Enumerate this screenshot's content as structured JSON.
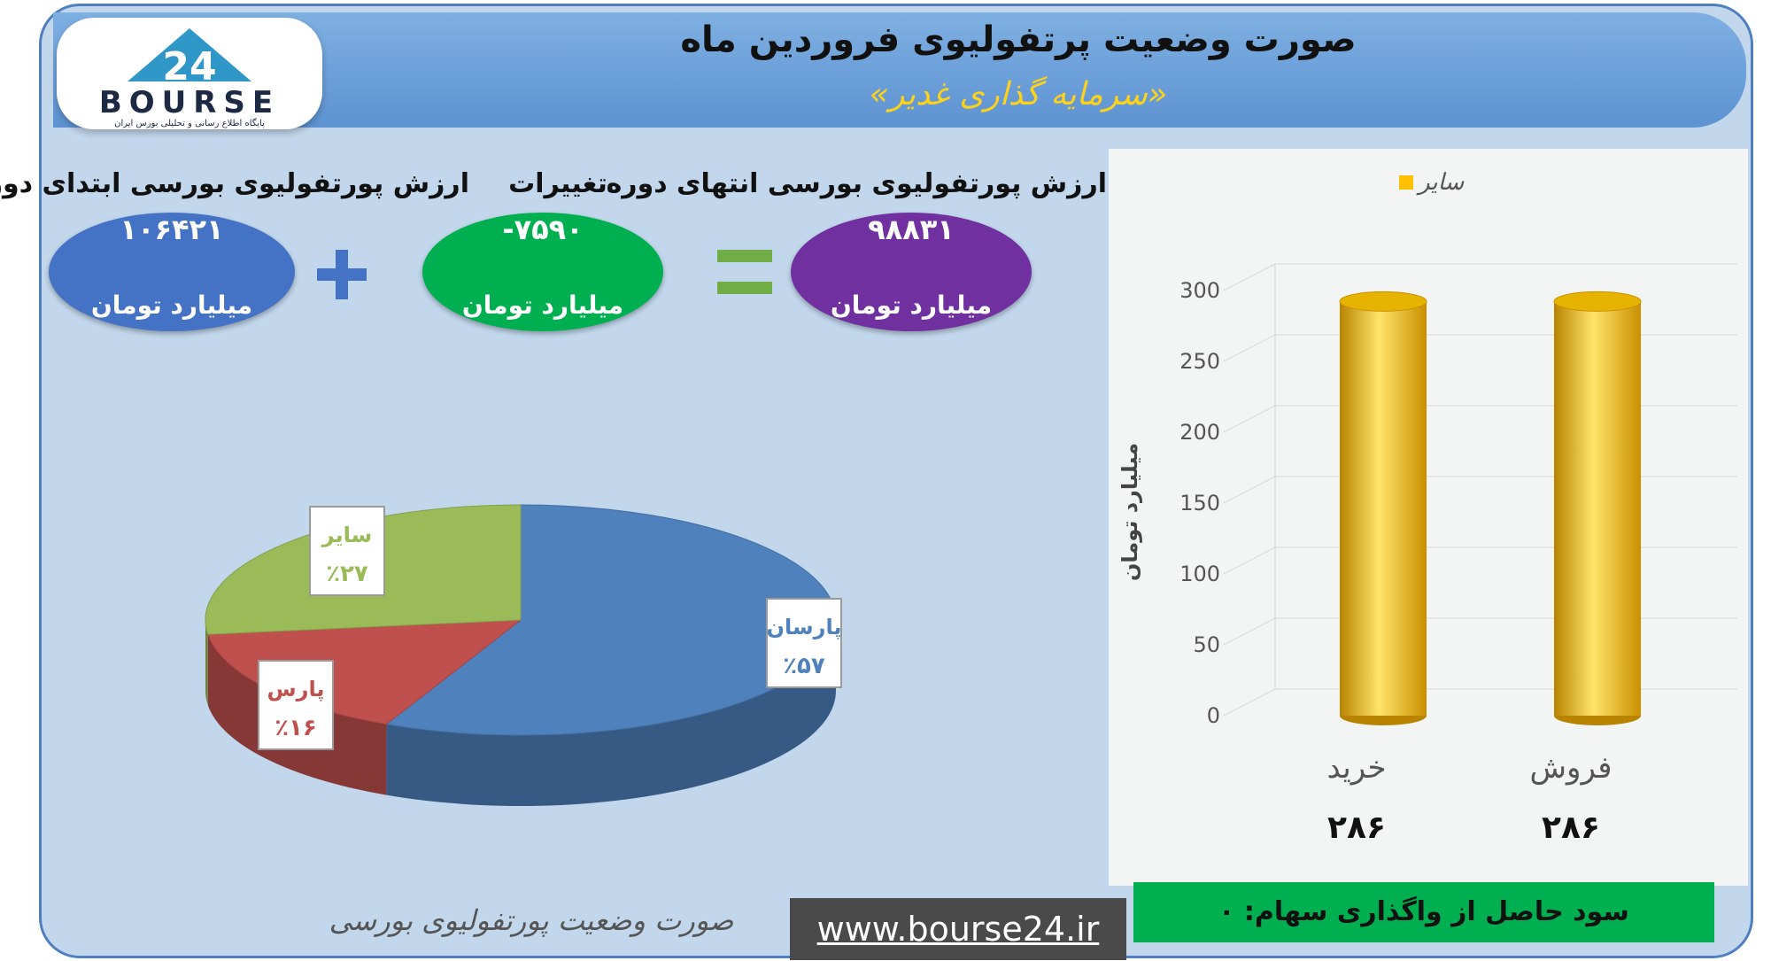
{
  "header": {
    "title": "صورت وضعیت پرتفولیوی فروردین ماه",
    "subtitle": "«سرمایه گذاری غدیر»"
  },
  "logo": {
    "digits": "24",
    "word": "BOURSE",
    "tagline": "پایگاه اطلاع رسانی و تحلیلی بورس ایران"
  },
  "summary": {
    "start": {
      "label": "ارزش پورتفولیوی بورسی ابتدای دوره",
      "value": "۱۰۶۴۲۱",
      "unit": "میلیارد تومان"
    },
    "change": {
      "label": "تغییرات",
      "value": "-۷۵۹۰",
      "unit": "میلیارد تومان"
    },
    "end": {
      "label": "ارزش پورتفولیوی بورسی انتهای دوره",
      "value": "۹۸۸۳۱",
      "unit": "میلیارد تومان"
    }
  },
  "chart_data": [
    {
      "type": "pie",
      "title": "صورت وضعیت پورتفولیوی بورسی",
      "slices": [
        {
          "name": "پارسان",
          "value": 57,
          "label": "٪۵۷",
          "color": "#4f81bd"
        },
        {
          "name": "پارس",
          "value": 16,
          "label": "٪۱۶",
          "color": "#c0504d"
        },
        {
          "name": "سایر",
          "value": 27,
          "label": "٪۲۷",
          "color": "#9bbb59"
        }
      ]
    },
    {
      "type": "bar",
      "categories": [
        "خرید",
        "فروش"
      ],
      "series": [
        {
          "name": "سایر",
          "values": [
            286,
            286
          ],
          "color": "#ffc000"
        }
      ],
      "value_labels": [
        "۲۸۶",
        "۲۸۶"
      ],
      "ylabel": "میلیارد تومان",
      "ylim": [
        0,
        300
      ],
      "yticks": [
        "0",
        "50",
        "100",
        "150",
        "200",
        "250",
        "300"
      ],
      "legend_position": "top",
      "grid": true
    }
  ],
  "footer": {
    "url": "www.bourse24.ir",
    "profit": "سود حاصل از واگذاری سهام: ۰"
  }
}
